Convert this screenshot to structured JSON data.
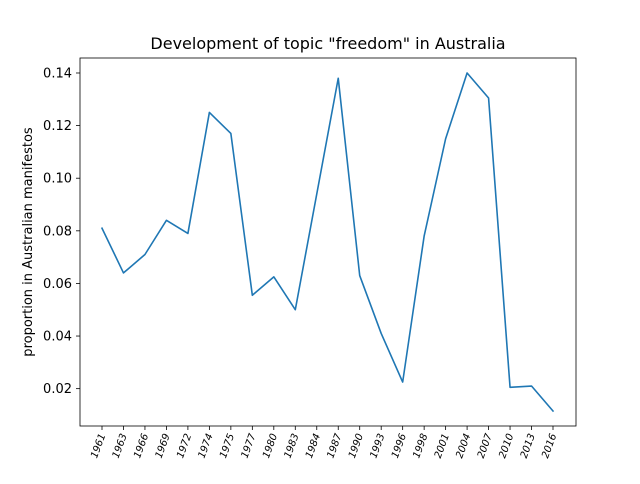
{
  "chart_data": {
    "type": "line",
    "title": "Development of topic \"freedom\" in Australia",
    "xlabel": "",
    "ylabel": "proportion in Australian manifestos",
    "categories": [
      "1961",
      "1963",
      "1966",
      "1969",
      "1972",
      "1974",
      "1975",
      "1977",
      "1980",
      "1983",
      "1984",
      "1987",
      "1990",
      "1993",
      "1996",
      "1998",
      "2001",
      "2004",
      "2007",
      "2010",
      "2013",
      "2016"
    ],
    "series": [
      {
        "values": [
          0.081,
          0.064,
          0.071,
          0.084,
          0.079,
          0.125,
          0.117,
          0.0555,
          0.0625,
          0.05,
          0.094,
          0.138,
          0.063,
          0.041,
          0.0225,
          0.078,
          0.115,
          0.14,
          0.1305,
          0.0205,
          0.021,
          0.0115
        ],
        "color": "#1f77b4"
      }
    ],
    "ylim": [
      0.0058,
      0.1457
    ],
    "yticks": [
      "0.02",
      "0.04",
      "0.06",
      "0.08",
      "0.10",
      "0.12",
      "0.14"
    ],
    "ytick_values": [
      0.02,
      0.04,
      0.06,
      0.08,
      0.1,
      0.12,
      0.14
    ],
    "grid": false,
    "legend": "none"
  }
}
